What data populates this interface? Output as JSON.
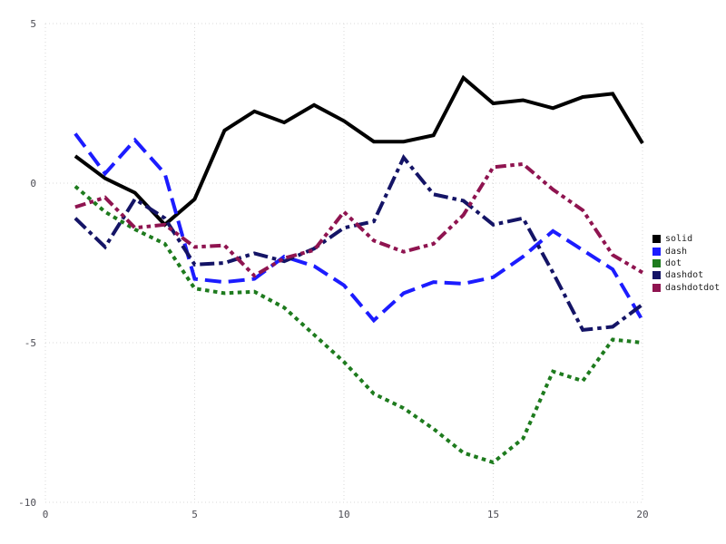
{
  "chart_data": {
    "type": "line",
    "title": "",
    "xlabel": "",
    "ylabel": "",
    "xlim": [
      0,
      20
    ],
    "ylim": [
      -10,
      5
    ],
    "x_ticks": [
      0,
      5,
      10,
      15,
      20
    ],
    "y_ticks": [
      5,
      0,
      -5,
      -10
    ],
    "grid": true,
    "legend_position": "right",
    "x": [
      1,
      2,
      3,
      4,
      5,
      6,
      7,
      8,
      9,
      10,
      11,
      12,
      13,
      14,
      15,
      16,
      17,
      18,
      19,
      20
    ],
    "series": [
      {
        "name": "solid",
        "color": "#000000",
        "linestyle": "solid",
        "values": [
          0.85,
          0.15,
          -0.3,
          -1.3,
          -0.5,
          1.65,
          2.25,
          1.9,
          2.45,
          1.95,
          1.3,
          1.3,
          1.5,
          3.3,
          2.5,
          2.6,
          2.35,
          2.7,
          2.8,
          1.25
        ]
      },
      {
        "name": "dash",
        "color": "#1c1cff",
        "linestyle": "dash",
        "values": [
          1.55,
          0.3,
          1.35,
          0.3,
          -3.0,
          -3.1,
          -3.0,
          -2.3,
          -2.6,
          -3.2,
          -4.3,
          -3.45,
          -3.1,
          -3.15,
          -2.95,
          -2.3,
          -1.5,
          -2.1,
          -2.7,
          -4.3
        ]
      },
      {
        "name": "dot",
        "color": "#1e7b1e",
        "linestyle": "dot",
        "values": [
          -0.1,
          -0.9,
          -1.45,
          -1.9,
          -3.3,
          -3.45,
          -3.4,
          -3.9,
          -4.75,
          -5.6,
          -6.6,
          -7.05,
          -7.7,
          -8.45,
          -8.75,
          -8.0,
          -5.9,
          -6.2,
          -4.9,
          -5.0
        ]
      },
      {
        "name": "dashdot",
        "color": "#141466",
        "linestyle": "dashdot",
        "values": [
          -1.1,
          -2.0,
          -0.5,
          -1.1,
          -2.55,
          -2.5,
          -2.2,
          -2.45,
          -2.05,
          -1.4,
          -1.2,
          0.8,
          -0.35,
          -0.55,
          -1.3,
          -1.1,
          -2.8,
          -4.6,
          -4.5,
          -3.8
        ]
      },
      {
        "name": "dashdotdot",
        "color": "#8f1450",
        "linestyle": "dashdotdot",
        "values": [
          -0.75,
          -0.45,
          -1.4,
          -1.3,
          -2.0,
          -1.95,
          -2.9,
          -2.35,
          -2.1,
          -0.9,
          -1.8,
          -2.15,
          -1.9,
          -1.0,
          0.5,
          0.6,
          -0.2,
          -0.85,
          -2.25,
          -2.8
        ]
      }
    ]
  },
  "legend": {
    "items": [
      "solid",
      "dash",
      "dot",
      "dashdot",
      "dashdotdot"
    ]
  },
  "colors": {
    "background": "#ffffff",
    "grid": "#d9d9d9",
    "tick_label": "#4d4d55",
    "legend_text": "#1f1f1f"
  }
}
